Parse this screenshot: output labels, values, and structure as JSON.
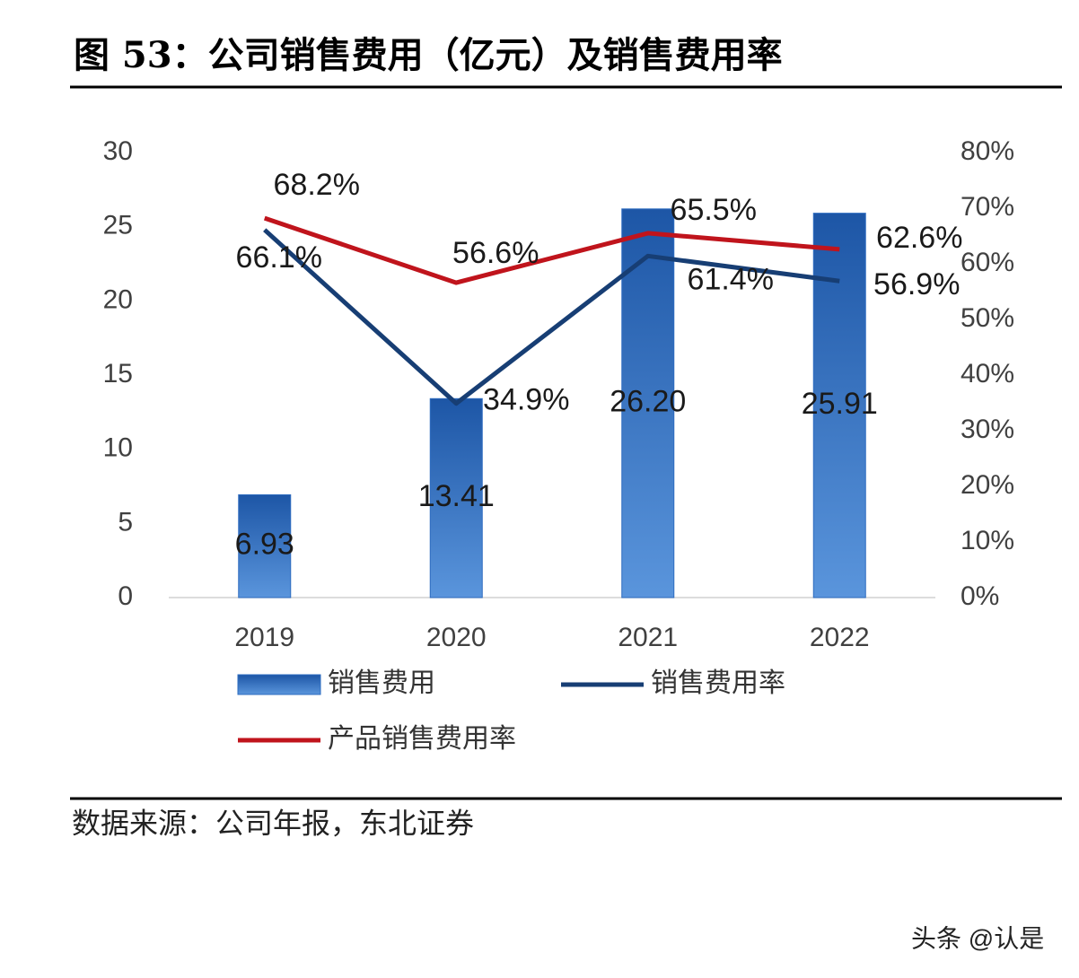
{
  "chart_data": {
    "type": "bar-line",
    "title": "图 53：公司销售费用（亿元）及销售费用率",
    "source": "数据来源：公司年报，东北证券",
    "watermark": "头条 @认是",
    "categories": [
      "2019",
      "2020",
      "2021",
      "2022"
    ],
    "ylim": [
      0,
      30
    ],
    "yticks": [
      0,
      5,
      10,
      15,
      20,
      25,
      30
    ],
    "y2lim": [
      0,
      80
    ],
    "y2ticks": [
      {
        "value": 0,
        "label": "0%"
      },
      {
        "value": 10,
        "label": "10%"
      },
      {
        "value": 20,
        "label": "20%"
      },
      {
        "value": 30,
        "label": "30%"
      },
      {
        "value": 40,
        "label": "40%"
      },
      {
        "value": 50,
        "label": "50%"
      },
      {
        "value": 60,
        "label": "60%"
      },
      {
        "value": 70,
        "label": "70%"
      },
      {
        "value": 80,
        "label": "80%"
      }
    ],
    "series": [
      {
        "name": "销售费用",
        "type": "bar",
        "color": "#2e6cc0",
        "values": [
          6.93,
          13.41,
          26.2,
          25.91
        ],
        "value_labels": [
          "6.93",
          "13.41",
          "26.20",
          "25.91"
        ]
      },
      {
        "name": "销售费用率",
        "type": "line",
        "axis": "y2",
        "color": "#173e74",
        "values": [
          66.1,
          34.9,
          61.4,
          56.9
        ],
        "value_labels": [
          "66.1%",
          "34.9%",
          "61.4%",
          "56.9%"
        ]
      },
      {
        "name": "产品销售费用率",
        "type": "line",
        "axis": "y2",
        "color": "#c0141c",
        "values": [
          68.2,
          56.6,
          65.5,
          62.6
        ],
        "value_labels": [
          "68.2%",
          "56.6%",
          "65.5%",
          "62.6%"
        ]
      }
    ]
  }
}
